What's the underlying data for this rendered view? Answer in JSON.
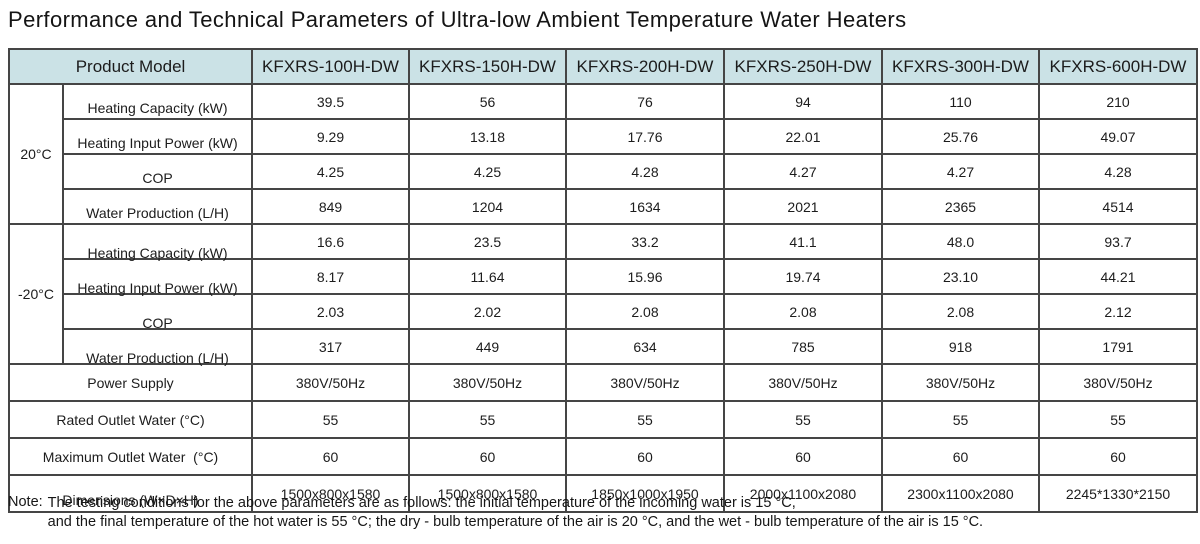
{
  "title": "Performance and Technical Parameters of Ultra-low Ambient Temperature Water Heaters",
  "colors": {
    "header_bg": "#cbe2e6"
  },
  "table": {
    "product_model_label": "Product Model",
    "models": [
      "KFXRS-100H-DW",
      "KFXRS-150H-DW",
      "KFXRS-200H-DW",
      "KFXRS-250H-DW",
      "KFXRS-300H-DW",
      "KFXRS-600H-DW"
    ],
    "groups": [
      {
        "temp": "20°C",
        "rows": [
          {
            "label": "Heating Capacity (kW)",
            "values": [
              "39.5",
              "56",
              "76",
              "94",
              "110",
              "210"
            ]
          },
          {
            "label": "Heating Input Power (kW)",
            "values": [
              "9.29",
              "13.18",
              "17.76",
              "22.01",
              "25.76",
              "49.07"
            ]
          },
          {
            "label": "COP",
            "values": [
              "4.25",
              "4.25",
              "4.28",
              "4.27",
              "4.27",
              "4.28"
            ]
          },
          {
            "label": "Water Production (L/H)",
            "values": [
              "849",
              "1204",
              "1634",
              "2021",
              "2365",
              "4514"
            ]
          }
        ]
      },
      {
        "temp": "-20°C",
        "rows": [
          {
            "label": "Heating Capacity (kW)",
            "values": [
              "16.6",
              "23.5",
              "33.2",
              "41.1",
              "48.0",
              "93.7"
            ]
          },
          {
            "label": "Heating Input Power (kW)",
            "values": [
              "8.17",
              "11.64",
              "15.96",
              "19.74",
              "23.10",
              "44.21"
            ]
          },
          {
            "label": "COP",
            "values": [
              "2.03",
              "2.02",
              "2.08",
              "2.08",
              "2.08",
              "2.12"
            ]
          },
          {
            "label": "Water Production (L/H)",
            "values": [
              "317",
              "449",
              "634",
              "785",
              "918",
              "1791"
            ]
          }
        ]
      }
    ],
    "footer_rows": [
      {
        "label": "Power Supply",
        "values": [
          "380V/50Hz",
          "380V/50Hz",
          "380V/50Hz",
          "380V/50Hz",
          "380V/50Hz",
          "380V/50Hz"
        ]
      },
      {
        "label": "Rated Outlet Water (°C)",
        "values": [
          "55",
          "55",
          "55",
          "55",
          "55",
          "55"
        ]
      },
      {
        "label": "Maximum Outlet Water  (°C)",
        "values": [
          "60",
          "60",
          "60",
          "60",
          "60",
          "60"
        ]
      },
      {
        "label": "Dimensions (W×D×H)",
        "values": [
          "1500x800x1580",
          "1500x800x1580",
          "1850x1000x1950",
          "2000x1100x2080",
          "2300x1100x2080",
          "2245*1330*2150"
        ]
      }
    ]
  },
  "note": {
    "label": "Note:",
    "line1": "The testing conditions for the above parameters are as follows: the initial temperature of the incoming water is 15 °C,",
    "line2": "and the final temperature of the hot water is 55 °C; the dry - bulb temperature of the air is 20 °C, and the wet - bulb temperature of the air is 15 °C."
  }
}
